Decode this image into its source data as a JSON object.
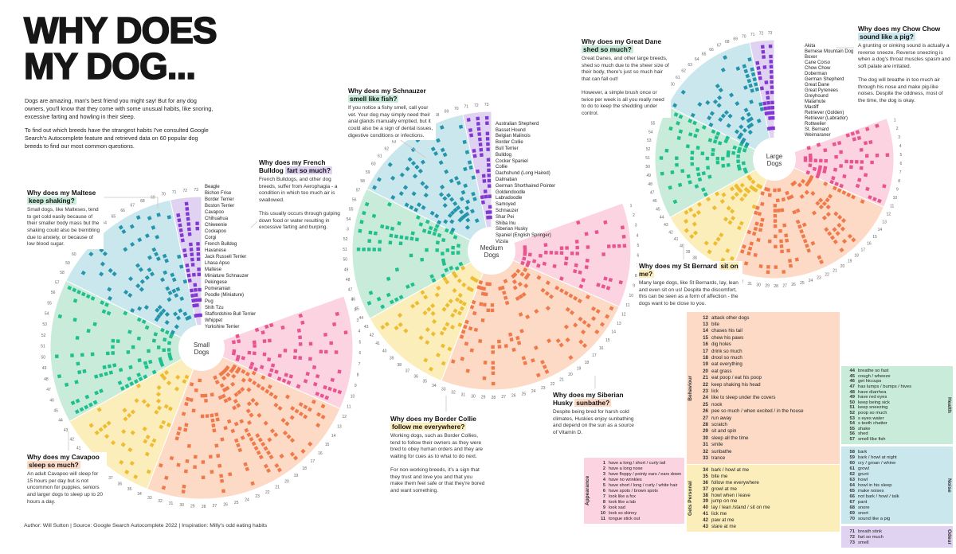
{
  "title_line1": "WHY DOES",
  "title_line2": "MY DOG...",
  "intro_p1": "Dogs are amazing, man's best friend you might say! But for any dog owners, you'll know that they come with some unusual habits, like snoring, excessive farting and howling in their sleep.",
  "intro_p2": "To find out which breeds have the strangest habits I've consulted Google Search's Autocomplete feature and retrieved data on 60 popular dog breeds to find our most common questions.",
  "footer": "Author: Will Sutton | Source: Google Search Autocomplete 2022 | Inspiration: Milly's odd eating habits",
  "chart_data": {
    "type": "scatter",
    "layout": "polar",
    "title": "Why does my dog... - Google autocomplete questions (1-73) by breed, split into Small / Medium / Large dog radial charts",
    "questions_total": 73,
    "breeds_total": 60,
    "legend_position": "bottom-right",
    "categories": [
      {
        "key": "appearance",
        "name": "Appearance",
        "color_light": "#fbd3e1",
        "color_dark": "#e8548e",
        "items": [
          {
            "n": 1,
            "label": "have a long / short / curly tail"
          },
          {
            "n": 2,
            "label": "have a long nose"
          },
          {
            "n": 3,
            "label": "have floppy / pointy ears / ears down"
          },
          {
            "n": 4,
            "label": "have no wrinkles"
          },
          {
            "n": 5,
            "label": "have short / long / curly / white hair"
          },
          {
            "n": 6,
            "label": "have spots / brown spots"
          },
          {
            "n": 7,
            "label": "look like a fox"
          },
          {
            "n": 8,
            "label": "look like a lab"
          },
          {
            "n": 9,
            "label": "look sad"
          },
          {
            "n": 10,
            "label": "look so skinny"
          },
          {
            "n": 11,
            "label": "tongue stick out"
          }
        ]
      },
      {
        "key": "behaviour",
        "name": "Behaviour",
        "color_light": "#fcdac6",
        "color_dark": "#f0794a",
        "items": [
          {
            "n": 12,
            "label": "attack other dogs"
          },
          {
            "n": 13,
            "label": "bite"
          },
          {
            "n": 14,
            "label": "chases his tail"
          },
          {
            "n": 15,
            "label": "chew his paws"
          },
          {
            "n": 16,
            "label": "dig holes"
          },
          {
            "n": 17,
            "label": "drink so much"
          },
          {
            "n": 18,
            "label": "drool so much"
          },
          {
            "n": 19,
            "label": "eat everything"
          },
          {
            "n": 20,
            "label": "eat grass"
          },
          {
            "n": 21,
            "label": "eat poop / eat his poop"
          },
          {
            "n": 22,
            "label": "keep shaking his head"
          },
          {
            "n": 23,
            "label": "lick"
          },
          {
            "n": 24,
            "label": "like to sleep under the covers"
          },
          {
            "n": 25,
            "label": "nook"
          },
          {
            "n": 26,
            "label": "pee so much / when excited / in the house"
          },
          {
            "n": 27,
            "label": "run away"
          },
          {
            "n": 28,
            "label": "scratch"
          },
          {
            "n": 29,
            "label": "sit and spin"
          },
          {
            "n": 30,
            "label": "sleep all the time"
          },
          {
            "n": 31,
            "label": "smile"
          },
          {
            "n": 32,
            "label": "sunbathe"
          },
          {
            "n": 33,
            "label": "trance"
          }
        ]
      },
      {
        "key": "gets_personal",
        "name": "Gets Personal",
        "color_light": "#fceebb",
        "color_dark": "#eebc33",
        "items": [
          {
            "n": 34,
            "label": "bark / howl at me"
          },
          {
            "n": 35,
            "label": "bite me"
          },
          {
            "n": 36,
            "label": "follow me everywhere"
          },
          {
            "n": 37,
            "label": "growl at me"
          },
          {
            "n": 38,
            "label": "howl when i leave"
          },
          {
            "n": 39,
            "label": "jump on me"
          },
          {
            "n": 40,
            "label": "lay / lean /stand / sit on me"
          },
          {
            "n": 41,
            "label": "lick me"
          },
          {
            "n": 42,
            "label": "paw at me"
          },
          {
            "n": 43,
            "label": "stare at me"
          }
        ]
      },
      {
        "key": "health",
        "name": "Health",
        "color_light": "#c8ecd9",
        "color_dark": "#1fbf8e",
        "items": [
          {
            "n": 44,
            "label": "breathe so fast"
          },
          {
            "n": 45,
            "label": "cough / wheeze"
          },
          {
            "n": 46,
            "label": "get hiccups"
          },
          {
            "n": 47,
            "label": "has lumps / bumps / hives"
          },
          {
            "n": 48,
            "label": "have diarrhea"
          },
          {
            "n": 49,
            "label": "have red eyes"
          },
          {
            "n": 50,
            "label": "keep being sick"
          },
          {
            "n": 51,
            "label": "keep sneezing"
          },
          {
            "n": 52,
            "label": "poop so much"
          },
          {
            "n": 53,
            "label": "s eyes water"
          },
          {
            "n": 54,
            "label": "s teeth chatter"
          },
          {
            "n": 55,
            "label": "shake"
          },
          {
            "n": 56,
            "label": "shed"
          },
          {
            "n": 57,
            "label": "smell like fish"
          }
        ]
      },
      {
        "key": "noise",
        "name": "Noise",
        "color_light": "#cbe7ee",
        "color_dark": "#2595ab",
        "items": [
          {
            "n": 58,
            "label": "bark"
          },
          {
            "n": 59,
            "label": "bark / howl at night"
          },
          {
            "n": 60,
            "label": "cry / groan / whine"
          },
          {
            "n": 61,
            "label": "growl"
          },
          {
            "n": 62,
            "label": "grunt"
          },
          {
            "n": 63,
            "label": "howl"
          },
          {
            "n": 64,
            "label": "howl in his sleep"
          },
          {
            "n": 65,
            "label": "make noises"
          },
          {
            "n": 66,
            "label": "not bark / howl / talk"
          },
          {
            "n": 67,
            "label": "pant"
          },
          {
            "n": 68,
            "label": "snore"
          },
          {
            "n": 69,
            "label": "snort"
          },
          {
            "n": 70,
            "label": "sound like a pig"
          }
        ]
      },
      {
        "key": "odeur",
        "name": "Odeur",
        "color_light": "#e0d3f2",
        "color_dark": "#8138d2",
        "items": [
          {
            "n": 71,
            "label": "breath stink"
          },
          {
            "n": 72,
            "label": "fart so much"
          },
          {
            "n": 73,
            "label": "smell"
          }
        ]
      }
    ],
    "groups": [
      {
        "label": "Small Dogs",
        "breeds": [
          "Beagle",
          "Bichon Frise",
          "Border Terrier",
          "Boston Terrier",
          "Cavapoo",
          "Chihuahua",
          "Chiweenie",
          "Cockapoo",
          "Corgi",
          "French Bulldog",
          "Havanese",
          "Jack Russell Terrier",
          "Lhasa Apso",
          "Maltese",
          "Miniature Schnauzer",
          "Pekingese",
          "Pomeranian",
          "Poodle (Miniature)",
          "Pug",
          "Shih Tzu",
          "Staffordshire Bull Terrier",
          "Whippet",
          "Yorkshire Terrier"
        ]
      },
      {
        "label": "Medium Dogs",
        "breeds": [
          "Australian Shepherd",
          "Basset Hound",
          "Belgian Malinois",
          "Border Collie",
          "Bull Terrier",
          "Bulldog",
          "Cocker Spaniel",
          "Collie",
          "Dachshund (Long Haired)",
          "Dalmatian",
          "German Shorthaired Pointer",
          "Goldendoodle",
          "Labradoodle",
          "Samoyed",
          "Schnauzer",
          "Shar Pei",
          "Shiba Inu",
          "Siberian Husky",
          "Spaniel (English Springer)",
          "Vizsla"
        ]
      },
      {
        "label": "Large Dogs",
        "breeds": [
          "Akita",
          "Bernese Mountain Dog",
          "Boxer",
          "Cane Corso",
          "Chow Chow",
          "Doberman",
          "German Shepherd",
          "Great Dane",
          "Great Pyrenees",
          "Greyhound",
          "Malamute",
          "Mastiff",
          "Retriever (Golden)",
          "Retriever (Labrador)",
          "Rottweiler",
          "St. Bernard",
          "Weimaraner"
        ]
      }
    ]
  },
  "annotations": [
    {
      "q_prefix": "Why does my Maltese",
      "q_highlight": "keep shaking?",
      "cat": "health",
      "body": "Small dogs, like Malteses, tend to get cold easily because of their smaller body mass but the shaking could also be trembling due to anxiety, or because of low blood sugar."
    },
    {
      "q_prefix": "Why does my Cavapoo",
      "q_highlight": "sleep so much?",
      "cat": "behaviour",
      "body": "An adult Cavapoo will sleep for 15 hours per day but is not uncommon for puppies, seniors and larger dogs to sleep up to 20 hours a day."
    },
    {
      "q_prefix": "Why does my French Bulldog",
      "q_highlight": "fart so much?",
      "cat": "odeur",
      "body": "French Bulldogs, and other dog breeds, suffer from Aerophagia - a condition in which too much air is swallowed.\n\nThis usually occurs through gulping down food or water resulting in excessive farting and burping."
    },
    {
      "q_prefix": "Why does my Schnauzer",
      "q_highlight": "smell like fish?",
      "cat": "health",
      "body": "If you notice a fishy smell, call your vet. Your dog may simply need their anal glands manually emptied, but it could also be a sign of dental issues, digestive conditions or infections."
    },
    {
      "q_prefix": "Why does my Border Collie",
      "q_highlight": "follow me everywhere?",
      "cat": "gets_personal",
      "body": "Working dogs, such as Border Collies, tend to follow their owners as they were bred to obey human orders and they are waiting for cues as to what to do next.\n\nFor non-working breeds, it's a sign that they trust and love you and that you make them feel safe or that they're bored and want something."
    },
    {
      "q_prefix": "Why does my Siberian Husky",
      "q_highlight": "sunbathe?",
      "cat": "behaviour",
      "body": "Despite being bred for harsh cold climates, Huskies enjoy sunbathing and depend on the sun as a source of Vitamin D."
    },
    {
      "q_prefix": "Why does my Great Dane",
      "q_highlight": "shed so much?",
      "cat": "health",
      "body": "Great Danes, and other large breeds, shed so much due to the sheer size of their body, there's just so much hair that can fall out!\n\nHowever, a simple brush once or twice per week is all you really need to do to keep the shedding under control."
    },
    {
      "q_prefix": "Why does my Chow Chow",
      "q_highlight": "sound like a pig?",
      "cat": "noise",
      "body": "A grunting or oinking sound is actually a reverse sneeze. Reverse sneezing is when a dog's throat muscles spasm and soft palate are irritated.\n\nThe dog will breathe in too much air through his nose and make pig-like noises. Despite the oddness, most of the time, the dog is okay."
    },
    {
      "q_prefix": "Why does my St Bernard",
      "q_highlight": "sit on me?",
      "cat": "gets_personal",
      "body": "Many large dogs, like St Bernards, lay, lean and even sit on us! Despite the discomfort, this can be seen as a form of affection - the dogs want to be close to you."
    }
  ]
}
